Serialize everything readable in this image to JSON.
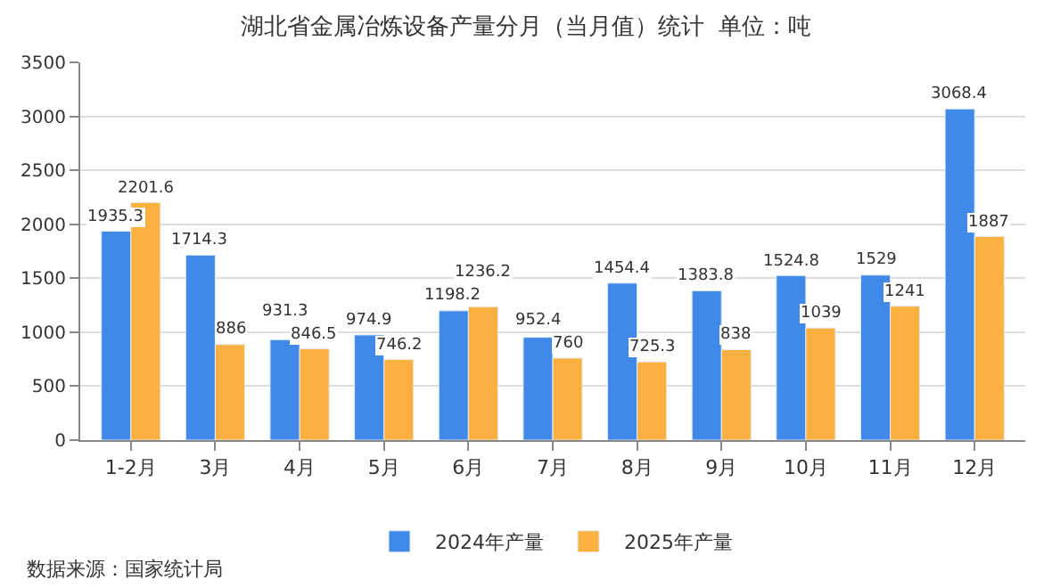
{
  "chart_data": {
    "type": "bar",
    "title": "湖北省金属冶炼设备产量分月（当月值）统计  单位：吨",
    "categories": [
      "1-2月",
      "3月",
      "4月",
      "5月",
      "6月",
      "7月",
      "8月",
      "9月",
      "10月",
      "11月",
      "12月"
    ],
    "series": [
      {
        "name": "2024年产量",
        "color": "#4189e8",
        "values": [
          1935.3,
          1714.3,
          931.3,
          974.9,
          1198.2,
          952.4,
          1454.4,
          1383.8,
          1524.8,
          1529,
          3068.4
        ]
      },
      {
        "name": "2025年产量",
        "color": "#fbb140",
        "values": [
          2201.6,
          886,
          846.5,
          746.2,
          1236.2,
          760,
          725.3,
          838,
          1039,
          1241,
          1887
        ]
      }
    ],
    "ylim": [
      0,
      3500
    ],
    "yticks": [
      0,
      500,
      1000,
      1500,
      2000,
      2500,
      3000,
      3500
    ],
    "grid": "y",
    "legend": "bottom",
    "data_labels": true,
    "annotations": [
      "数据来源：国家统计局"
    ]
  }
}
